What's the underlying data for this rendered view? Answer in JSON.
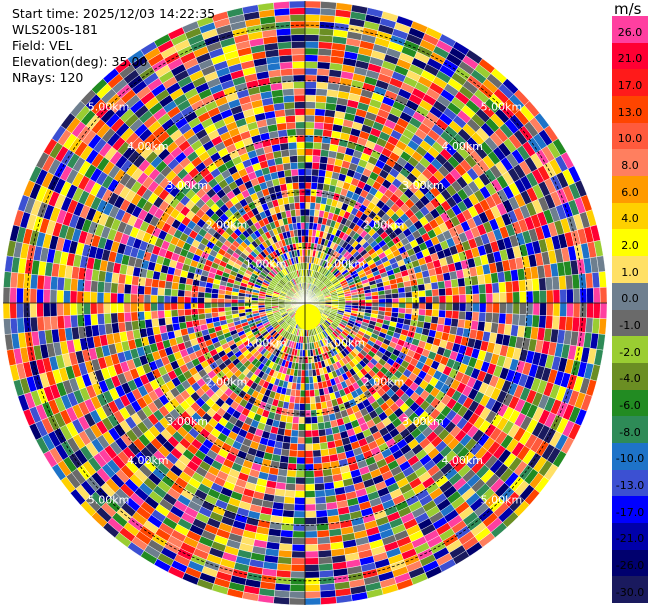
{
  "info": {
    "start_time": "Start time: 2025/12/03 14:22:35",
    "site": "WLS200s-181",
    "field": "Field: VEL",
    "elevation": "Elevation(deg): 35.00",
    "nrays": "NRays: 120"
  },
  "colorbar": {
    "unit": "m/s",
    "levels": [
      {
        "label": "26.0",
        "color": "#ff3fa0"
      },
      {
        "label": "21.0",
        "color": "#ff0033"
      },
      {
        "label": "17.0",
        "color": "#ff1a1a"
      },
      {
        "label": "13.0",
        "color": "#ff4500"
      },
      {
        "label": "10.0",
        "color": "#ff5a3c"
      },
      {
        "label": "8.0",
        "color": "#ff7f5f"
      },
      {
        "label": "6.0",
        "color": "#ff9a00"
      },
      {
        "label": "4.0",
        "color": "#ffd000"
      },
      {
        "label": "2.0",
        "color": "#ffff00"
      },
      {
        "label": "1.0",
        "color": "#ffe066"
      },
      {
        "label": "0.0",
        "color": "#6e7f8f"
      },
      {
        "label": "-1.0",
        "color": "#6a6a6a"
      },
      {
        "label": "-2.0",
        "color": "#9acd32"
      },
      {
        "label": "-4.0",
        "color": "#6b8e23"
      },
      {
        "label": "-6.0",
        "color": "#228b22"
      },
      {
        "label": "-8.0",
        "color": "#2e8b57"
      },
      {
        "label": "-10.0",
        "color": "#1e73c8"
      },
      {
        "label": "-13.0",
        "color": "#3c50d2"
      },
      {
        "label": "-17.0",
        "color": "#0000ff"
      },
      {
        "label": "-21.0",
        "color": "#0000aa"
      },
      {
        "label": "-26.0",
        "color": "#00006e"
      },
      {
        "label": "-30.0",
        "color": "#1a1a5e"
      }
    ]
  },
  "chart_data": {
    "type": "heatmap",
    "projection": "polar",
    "field": "VEL",
    "nrays": 120,
    "range_rings_km": [
      "1.00km",
      "2.00km",
      "3.00km",
      "4.00km",
      "5.00km"
    ],
    "max_range_km": 5.0,
    "grid": true
  }
}
